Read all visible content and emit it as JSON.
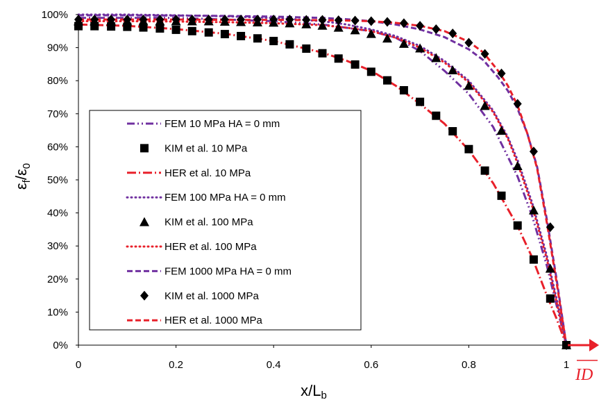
{
  "chart_data": {
    "type": "line",
    "xlabel": "x/L",
    "xlabel_sub": "b",
    "ylabel_main": "ε",
    "ylabel_sub_num": "f",
    "ylabel_div": "/",
    "ylabel_sub_den": "0",
    "xlim": [
      0,
      1
    ],
    "ylim": [
      0,
      100
    ],
    "x_ticks": [
      "0",
      "0.2",
      "0.4",
      "0.6",
      "0.8",
      "1"
    ],
    "y_ticks": [
      "0%",
      "10%",
      "20%",
      "30%",
      "40%",
      "50%",
      "60%",
      "70%",
      "80%",
      "90%",
      "100%"
    ],
    "grid": false,
    "legend_position": "lower-left",
    "annotation": "ID",
    "series": [
      {
        "name": "FEM 10 MPa HA = 0 mm",
        "style": "dashdotdot",
        "color": "#7030a0",
        "x": [
          0,
          0.1,
          0.2,
          0.3,
          0.4,
          0.5,
          0.6,
          0.65,
          0.7,
          0.75,
          0.8,
          0.85,
          0.9,
          0.93,
          0.96,
          0.98,
          1.0
        ],
        "y": [
          99,
          99,
          99,
          98.5,
          98,
          97,
          95,
          93,
          89,
          83,
          76,
          66,
          51,
          39,
          24,
          12,
          0
        ]
      },
      {
        "name": "KIM et al. 10 MPa",
        "style": "square",
        "color": "#000000",
        "x": [
          0,
          0.033,
          0.067,
          0.1,
          0.133,
          0.167,
          0.2,
          0.233,
          0.267,
          0.3,
          0.333,
          0.367,
          0.4,
          0.433,
          0.467,
          0.5,
          0.533,
          0.567,
          0.6,
          0.633,
          0.667,
          0.7,
          0.733,
          0.767,
          0.8,
          0.833,
          0.867,
          0.9,
          0.933,
          0.967,
          1.0
        ],
        "y": [
          96.5,
          96.5,
          96.4,
          96.3,
          96.1,
          95.8,
          95.4,
          95,
          94.6,
          94.1,
          93.5,
          92.8,
          92,
          91,
          89.7,
          88.3,
          86.7,
          84.9,
          82.7,
          80.1,
          77.1,
          73.6,
          69.4,
          64.7,
          59.3,
          52.8,
          45.2,
          36.2,
          25.9,
          14.1,
          0
        ]
      },
      {
        "name": "HER et al. 10 MPa",
        "style": "dashdot",
        "color": "#e8202a",
        "x": [
          0,
          0.1,
          0.2,
          0.3,
          0.4,
          0.5,
          0.55,
          0.6,
          0.65,
          0.7,
          0.75,
          0.8,
          0.85,
          0.9,
          0.93,
          0.96,
          0.98,
          1.0
        ],
        "y": [
          97,
          96.6,
          95.6,
          94.2,
          92,
          88.5,
          86,
          83,
          78.5,
          73,
          67,
          59,
          49,
          36,
          26.5,
          15,
          8,
          0
        ]
      },
      {
        "name": "FEM 100 MPa HA = 0 mm",
        "style": "dotted",
        "color": "#7030a0",
        "x": [
          0,
          0.1,
          0.2,
          0.3,
          0.4,
          0.5,
          0.55,
          0.6,
          0.65,
          0.7,
          0.75,
          0.8,
          0.85,
          0.88,
          0.9,
          0.93,
          0.96,
          0.98,
          1.0
        ],
        "y": [
          100,
          100,
          99.8,
          99.5,
          99,
          98,
          97,
          95.5,
          93.5,
          90.5,
          86,
          80,
          71,
          63,
          56,
          43,
          27,
          14,
          0
        ]
      },
      {
        "name": "KIM et al. 100 MPa",
        "style": "triangle",
        "color": "#000000",
        "x": [
          0,
          0.033,
          0.067,
          0.1,
          0.133,
          0.167,
          0.2,
          0.233,
          0.267,
          0.3,
          0.333,
          0.367,
          0.4,
          0.433,
          0.467,
          0.5,
          0.533,
          0.567,
          0.6,
          0.633,
          0.667,
          0.7,
          0.733,
          0.767,
          0.8,
          0.833,
          0.867,
          0.9,
          0.933,
          0.967,
          1.0
        ],
        "y": [
          98,
          98,
          98,
          98,
          98,
          98,
          98,
          98,
          98,
          97.9,
          97.8,
          97.7,
          97.6,
          97.4,
          97.1,
          96.7,
          96.1,
          95.3,
          94.2,
          92.8,
          91.2,
          89.8,
          86.9,
          83.2,
          78.5,
          72.4,
          64.9,
          54.2,
          40.8,
          23.2,
          0
        ]
      },
      {
        "name": "HER et al. 100 MPa",
        "style": "dotted",
        "color": "#e8202a",
        "x": [
          0,
          0.1,
          0.2,
          0.3,
          0.4,
          0.5,
          0.55,
          0.6,
          0.65,
          0.7,
          0.75,
          0.8,
          0.85,
          0.88,
          0.9,
          0.93,
          0.96,
          0.98,
          1.0
        ],
        "y": [
          98,
          98,
          97.9,
          97.7,
          97.4,
          96.8,
          96,
          95,
          93,
          90,
          85.5,
          79.5,
          70.5,
          62.5,
          55,
          42,
          26,
          13,
          0
        ]
      },
      {
        "name": "FEM 1000 MPa HA = 0 mm",
        "style": "dashed",
        "color": "#7030a0",
        "x": [
          0,
          0.1,
          0.2,
          0.3,
          0.4,
          0.5,
          0.55,
          0.6,
          0.65,
          0.7,
          0.75,
          0.8,
          0.83,
          0.86,
          0.88,
          0.9,
          0.92,
          0.94,
          0.96,
          0.98,
          1.0
        ],
        "y": [
          99.8,
          99.8,
          99.7,
          99.6,
          99.4,
          99,
          98.6,
          98,
          97,
          95.5,
          93.2,
          89.5,
          86.2,
          81,
          77,
          71.5,
          64,
          54,
          38,
          20,
          0
        ]
      },
      {
        "name": "KIM et al. 1000 MPa",
        "style": "diamond",
        "color": "#000000",
        "x": [
          0,
          0.033,
          0.067,
          0.1,
          0.133,
          0.167,
          0.2,
          0.233,
          0.267,
          0.3,
          0.333,
          0.367,
          0.4,
          0.433,
          0.467,
          0.5,
          0.533,
          0.567,
          0.6,
          0.633,
          0.667,
          0.7,
          0.733,
          0.767,
          0.8,
          0.833,
          0.867,
          0.9,
          0.933,
          0.967,
          1.0
        ],
        "y": [
          98.5,
          98.5,
          98.5,
          98.5,
          98.5,
          98.5,
          98.5,
          98.5,
          98.5,
          98.5,
          98.5,
          98.5,
          98.5,
          98.5,
          98.4,
          98.4,
          98.3,
          98.2,
          98,
          97.8,
          97.4,
          96.6,
          95.6,
          94.3,
          91.5,
          88.1,
          82.2,
          73,
          58.6,
          35.7,
          0
        ]
      },
      {
        "name": "HER et al. 1000 MPa",
        "style": "dashed",
        "color": "#e8202a",
        "x": [
          0,
          0.1,
          0.2,
          0.3,
          0.4,
          0.5,
          0.55,
          0.6,
          0.65,
          0.7,
          0.75,
          0.8,
          0.83,
          0.86,
          0.88,
          0.9,
          0.92,
          0.94,
          0.96,
          0.98,
          1.0
        ],
        "y": [
          98.5,
          98.5,
          98.5,
          98.4,
          98.4,
          98.3,
          98.2,
          98,
          97.5,
          96.6,
          95,
          91.8,
          88.5,
          83,
          78.5,
          72.5,
          64,
          53.5,
          37,
          19,
          0
        ]
      }
    ]
  }
}
